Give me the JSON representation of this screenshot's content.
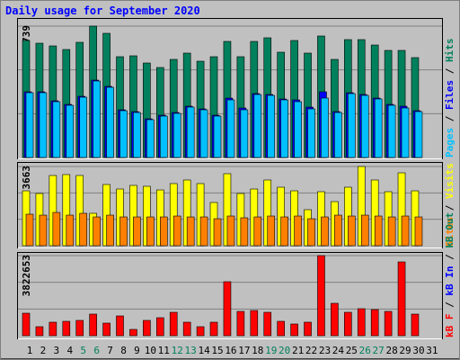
{
  "chart_data": {
    "type": "bar",
    "title": "Daily usage for September 2020",
    "categories": [
      "1",
      "2",
      "3",
      "4",
      "5",
      "6",
      "7",
      "8",
      "9",
      "10",
      "11",
      "12",
      "13",
      "14",
      "15",
      "16",
      "17",
      "18",
      "19",
      "20",
      "21",
      "22",
      "23",
      "24",
      "25",
      "26",
      "27",
      "28",
      "29",
      "30",
      "31"
    ],
    "weekend": [
      4,
      5,
      11,
      12,
      18,
      19,
      25,
      26
    ],
    "day_color": "#000000",
    "weekend_color": "#00805c",
    "legend_separator": " / ",
    "grid_divisions": 3,
    "panels": [
      {
        "ylim": [
          0,
          28739
        ],
        "yticks": [
          28739
        ],
        "series": [
          {
            "name": "Hits",
            "color": "#00805c",
            "values": [
              25590,
              24999,
              24408,
              23621,
              25196,
              28739,
              27164,
              22046,
              22243,
              20668,
              19684,
              21456,
              22834,
              21062,
              22046,
              25393,
              22046,
              25393,
              26180,
              23031,
              25590,
              22834,
              26574,
              21456,
              25786,
              25786,
              24605,
              23424,
              23424,
              21849,
              0
            ]
          },
          {
            "name": "Files",
            "color": "#0000ff",
            "values": [
              14369,
              14369,
              12401,
              11614,
              13385,
              16928,
              15550,
              10433,
              10039,
              8464,
              9252,
              9842,
              11220,
              10629,
              9252,
              12992,
              10826,
              13976,
              13779,
              12795,
              12598,
              11023,
              14369,
              10039,
              14173,
              13779,
              12992,
              11614,
              11220,
              10236,
              0
            ]
          },
          {
            "name": "Pages",
            "color": "#00c0ff",
            "values": [
              14172,
              14172,
              12204,
              11417,
              13188,
              16731,
              15353,
              10236,
              9842,
              8267,
              9055,
              9645,
              11023,
              10432,
              9055,
              12598,
              10432,
              13779,
              13582,
              12598,
              12204,
              10629,
              12991,
              9842,
              13976,
              13582,
              12795,
              11417,
              10826,
              10039,
              0
            ]
          }
        ]
      },
      {
        "ylim": [
          0,
          3663
        ],
        "yticks": [
          3663
        ],
        "series": [
          {
            "name": "Visits",
            "color": "#ffff00",
            "values": [
              2538,
              2414,
              3247,
              3289,
              3247,
              1498,
              2830,
              2622,
              2789,
              2747,
              2580,
              2872,
              3039,
              2872,
              1998,
              3330,
              2414,
              2622,
              3039,
              2705,
              2538,
              1665,
              2497,
              2039,
              2705,
              3663,
              3039,
              2497,
              3371,
              2538,
              0
            ]
          },
          {
            "name": "Sites",
            "color": "#ff8000",
            "values": [
              1456,
              1414,
              1539,
              1414,
              1498,
              1331,
              1414,
              1331,
              1331,
              1331,
              1331,
              1373,
              1331,
              1331,
              1248,
              1373,
              1290,
              1331,
              1373,
              1331,
              1373,
              1248,
              1331,
              1414,
              1373,
              1414,
              1373,
              1331,
              1373,
              1331,
              0
            ]
          }
        ]
      },
      {
        "ylim": [
          0,
          3822653
        ],
        "yticks": [
          3822653
        ],
        "series": [
          {
            "name": "kB Out",
            "color": "#00805c"
          },
          {
            "name": "kB In",
            "color": "#0000ff"
          },
          {
            "name": "kB F",
            "color": "#ff0000",
            "values": [
              1073775,
              429510,
              644265,
              687216,
              730167,
              1030824,
              601314,
              944922,
              300657,
              730167,
              859020,
              1116726,
              644265,
              429510,
              644265,
              2577060,
              1159677,
              1202628,
              1116726,
              687216,
              558363,
              644265,
              3822653,
              1546236,
              1116726,
              1288530,
              1245579,
              1159677,
              3522000,
              1030824,
              0
            ]
          }
        ]
      }
    ]
  }
}
